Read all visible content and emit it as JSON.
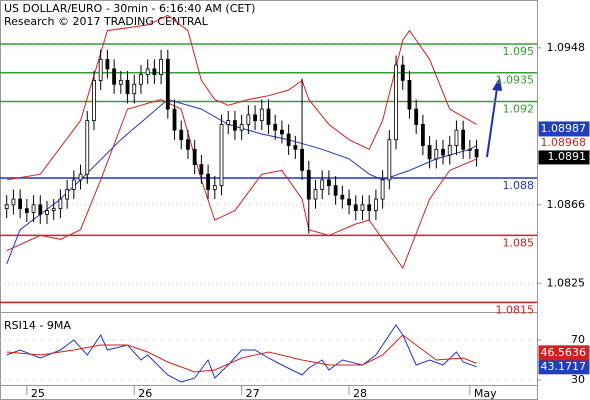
{
  "chart_data": [
    {
      "type": "candlestick",
      "title": "US DOLLAR/EURO - 30min - 6:16:40 AM (CET)",
      "subtitle": "Research © 2017 TRADING CENTRAL",
      "xlim": [
        -1,
        79
      ],
      "ylim": [
        1.081,
        1.0973
      ],
      "yticks": [
        1.0948,
        1.0866,
        1.0825
      ],
      "grid": true,
      "color": "#000000",
      "open": [
        1.0864,
        1.0866,
        1.0869,
        1.0864,
        1.0862,
        1.0866,
        1.0861,
        1.0863,
        1.0864,
        1.0869,
        1.0874,
        1.0879,
        1.0882,
        1.091,
        1.0931,
        1.0942,
        1.0937,
        1.0929,
        1.0931,
        1.0924,
        1.0929,
        1.0934,
        1.0937,
        1.0934,
        1.0942,
        1.0916,
        1.0905,
        1.09,
        1.0895,
        1.0887,
        1.0882,
        1.0874,
        1.0876,
        1.0908,
        1.091,
        1.0905,
        1.0908,
        1.0913,
        1.091,
        1.0916,
        1.0908,
        1.0905,
        1.0903,
        1.0897,
        1.0895,
        1.0884,
        1.0869,
        1.0874,
        1.0879,
        1.0876,
        1.0871,
        1.0869,
        1.0866,
        1.0863,
        1.0866,
        1.0863,
        1.0869,
        1.0879,
        1.09,
        1.0939,
        1.0931,
        1.0916,
        1.0908,
        1.0897,
        1.089,
        1.0895,
        1.0892,
        1.0897,
        1.0905,
        1.0895,
        1.0895
      ],
      "high": [
        1.0871,
        1.0874,
        1.0874,
        1.0869,
        1.0871,
        1.0871,
        1.0868,
        1.0869,
        1.0874,
        1.0879,
        1.0884,
        1.0887,
        1.0915,
        1.0936,
        1.0947,
        1.0947,
        1.0942,
        1.0936,
        1.0936,
        1.0934,
        1.0939,
        1.0942,
        1.0942,
        1.0947,
        1.0947,
        1.0921,
        1.091,
        1.0905,
        1.09,
        1.0892,
        1.0887,
        1.0881,
        1.0913,
        1.0915,
        1.0915,
        1.0913,
        1.0918,
        1.0918,
        1.0921,
        1.0921,
        1.0913,
        1.091,
        1.0908,
        1.0902,
        1.0932,
        1.0889,
        1.0879,
        1.0884,
        1.0884,
        1.0881,
        1.0876,
        1.0874,
        1.0871,
        1.0871,
        1.0871,
        1.0874,
        1.0884,
        1.0905,
        1.0944,
        1.0944,
        1.0936,
        1.0921,
        1.0913,
        1.0902,
        1.09,
        1.09,
        1.0902,
        1.091,
        1.091,
        1.09,
        1.09
      ],
      "low": [
        1.0859,
        1.0861,
        1.0859,
        1.0857,
        1.0857,
        1.0856,
        1.0856,
        1.0858,
        1.0859,
        1.0864,
        1.0869,
        1.0874,
        1.0877,
        1.0905,
        1.0926,
        1.0932,
        1.0924,
        1.0924,
        1.0919,
        1.0919,
        1.0924,
        1.0929,
        1.0929,
        1.0929,
        1.0911,
        1.09,
        1.0895,
        1.089,
        1.0882,
        1.0877,
        1.0869,
        1.0869,
        1.0871,
        1.0903,
        1.09,
        1.09,
        1.0903,
        1.0905,
        1.0905,
        1.0903,
        1.09,
        1.0898,
        1.0892,
        1.089,
        1.0879,
        1.0851,
        1.0864,
        1.0869,
        1.0871,
        1.0866,
        1.0864,
        1.0861,
        1.0858,
        1.0858,
        1.0858,
        1.0858,
        1.0864,
        1.0874,
        1.0895,
        1.0926,
        1.0911,
        1.0903,
        1.0892,
        1.0885,
        1.0885,
        1.0887,
        1.0887,
        1.0892,
        1.089,
        1.089,
        1.0886
      ],
      "close": [
        1.0866,
        1.0869,
        1.0864,
        1.0862,
        1.0866,
        1.0861,
        1.0863,
        1.0864,
        1.0869,
        1.0874,
        1.0879,
        1.0882,
        1.091,
        1.0931,
        1.0942,
        1.0937,
        1.0929,
        1.0931,
        1.0924,
        1.0929,
        1.0934,
        1.0937,
        1.0934,
        1.0942,
        1.0916,
        1.0905,
        1.09,
        1.0895,
        1.0887,
        1.0882,
        1.0874,
        1.0876,
        1.0908,
        1.091,
        1.0905,
        1.0908,
        1.0913,
        1.091,
        1.0916,
        1.0908,
        1.0905,
        1.0903,
        1.0897,
        1.0895,
        1.0884,
        1.0869,
        1.0874,
        1.0879,
        1.0876,
        1.0871,
        1.0869,
        1.0866,
        1.0863,
        1.0866,
        1.0863,
        1.0869,
        1.0879,
        1.09,
        1.0939,
        1.0931,
        1.0916,
        1.0908,
        1.0897,
        1.089,
        1.0895,
        1.0892,
        1.0897,
        1.0905,
        1.0895,
        1.0895,
        1.0891
      ],
      "series": [
        {
          "color": "#d42020",
          "x": [
            0,
            5,
            11,
            15,
            21,
            24,
            27,
            29,
            31,
            33,
            36,
            39,
            42,
            44,
            45,
            48,
            51,
            54,
            56,
            59,
            60,
            63,
            66,
            69,
            70
          ],
          "values": [
            1.0879,
            1.0882,
            1.091,
            1.0957,
            1.096,
            1.0965,
            1.0957,
            1.0931,
            1.0921,
            1.0918,
            1.0921,
            1.0923,
            1.0926,
            1.0931,
            1.0921,
            1.0908,
            1.09,
            1.0895,
            1.091,
            1.0952,
            1.0957,
            1.0942,
            1.0916,
            1.091,
            1.0908
          ]
        },
        {
          "color": "#d42020",
          "x": [
            0,
            5,
            8,
            11,
            14,
            18,
            23,
            26,
            29,
            31,
            34,
            38,
            41,
            44,
            45,
            48,
            52,
            54,
            56,
            59,
            60,
            63,
            66,
            70
          ],
          "values": [
            1.0842,
            1.085,
            1.0848,
            1.0853,
            1.0879,
            1.0916,
            1.0921,
            1.0916,
            1.0879,
            1.0858,
            1.0863,
            1.0882,
            1.0884,
            1.0869,
            1.0853,
            1.085,
            1.0856,
            1.0858,
            1.0848,
            1.0833,
            1.0842,
            1.0869,
            1.0884,
            1.089
          ]
        },
        {
          "color": "#2233bb",
          "x": [
            0,
            2,
            5,
            8,
            11,
            17,
            24,
            29,
            33,
            38,
            42,
            47,
            51,
            54,
            56,
            60,
            64,
            69,
            70
          ],
          "values": [
            1.0835,
            1.0853,
            1.0861,
            1.0869,
            1.0879,
            1.09,
            1.0921,
            1.0916,
            1.0908,
            1.0903,
            1.09,
            1.0895,
            1.089,
            1.0882,
            1.0879,
            1.0884,
            1.089,
            1.0895,
            1.0897
          ]
        }
      ],
      "levels": [
        {
          "value": 1.095,
          "color": "#33a033"
        },
        {
          "value": 1.0935,
          "color": "#33a033"
        },
        {
          "value": 1.092,
          "color": "#33a033"
        },
        {
          "value": 1.088,
          "color": "#2233bb"
        },
        {
          "value": 1.085,
          "color": "#d42020"
        },
        {
          "value": 1.0815,
          "color": "#d42020"
        }
      ],
      "price_labels": [
        {
          "value": 1.08987,
          "background": "#1f3fbf",
          "color": "#ffffff"
        },
        {
          "value": 1.08968,
          "background": "#ffffff",
          "color": "#d42020"
        },
        {
          "value": 1.0891,
          "background": "#000000",
          "color": "#ffffff"
        }
      ]
    },
    {
      "type": "line",
      "title": "RSI14 - 9MA",
      "xlim": [
        -1,
        79
      ],
      "xticks": [
        {
          "value": 3,
          "label": "25"
        },
        {
          "value": 19,
          "label": "26"
        },
        {
          "value": 35,
          "label": "27"
        },
        {
          "value": 51,
          "label": "28"
        },
        {
          "value": 69,
          "label": "May"
        }
      ],
      "ylim": [
        25,
        95
      ],
      "yticks": [
        70,
        30
      ],
      "grid": true,
      "series": [
        {
          "color": "#2233bb",
          "x": [
            0,
            2,
            5,
            8,
            10,
            12,
            14,
            15,
            18,
            20,
            21,
            24,
            26,
            28,
            30,
            31,
            33,
            35,
            37,
            39,
            41,
            44,
            45,
            47,
            48,
            50,
            53,
            55,
            56,
            58,
            59,
            61,
            63,
            65,
            67,
            68,
            70
          ],
          "values": [
            55,
            60,
            52,
            60,
            70,
            55,
            75,
            60,
            65,
            50,
            55,
            35,
            28,
            32,
            50,
            32,
            45,
            60,
            60,
            52,
            45,
            35,
            42,
            50,
            40,
            50,
            45,
            55,
            65,
            85,
            75,
            45,
            50,
            45,
            58,
            48,
            43.1717
          ]
        },
        {
          "color": "#d42020",
          "x": [
            0,
            5,
            10,
            14,
            18,
            21,
            24,
            28,
            31,
            35,
            39,
            44,
            48,
            53,
            56,
            59,
            61,
            64,
            68,
            70
          ],
          "values": [
            58,
            55,
            60,
            65,
            65,
            58,
            48,
            38,
            40,
            52,
            58,
            50,
            45,
            45,
            55,
            75,
            65,
            50,
            52,
            46.5636
          ]
        }
      ],
      "price_labels": [
        {
          "value": 46.5636,
          "background": "#d42020",
          "color": "#ffffff"
        },
        {
          "value": 43.1717,
          "background": "#1f3fbf",
          "color": "#ffffff"
        }
      ]
    }
  ]
}
